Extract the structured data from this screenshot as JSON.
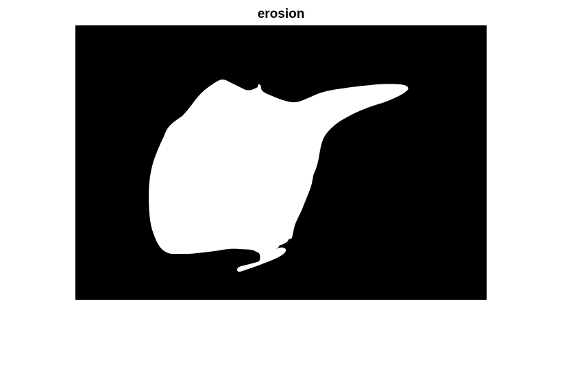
{
  "figure": {
    "title": "erosion"
  },
  "image": {
    "type": "binary-mask",
    "background_color": "#000000",
    "foreground_color": "#ffffff"
  }
}
